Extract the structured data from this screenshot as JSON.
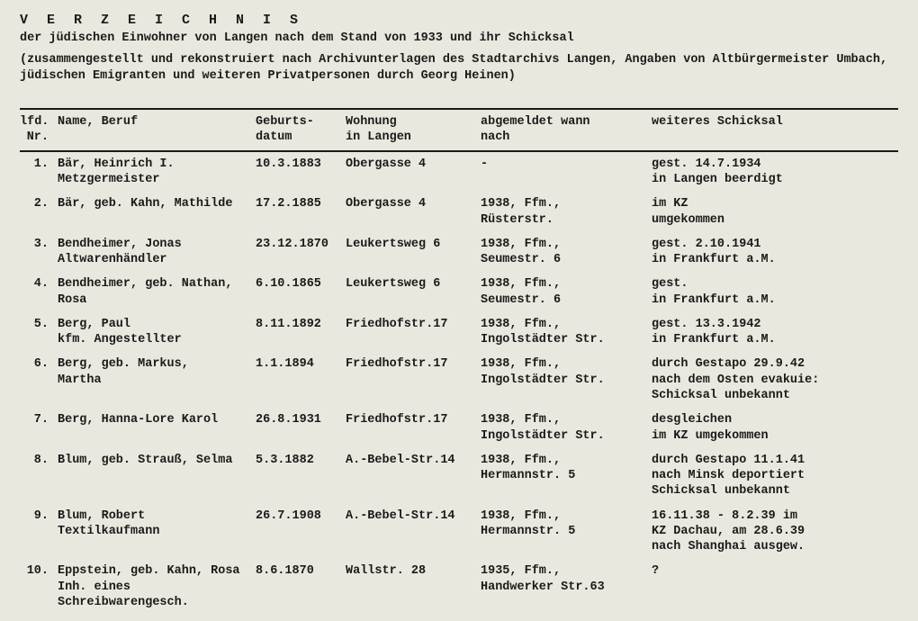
{
  "header": {
    "title": "V E R Z E I C H N I S",
    "subtitle": "der jüdischen Einwohner von Langen nach dem Stand von 1933 und ihr Schicksal",
    "note": "(zusammengestellt und rekonstruiert nach Archivunterlagen des Stadtarchivs Langen, Angaben von Altbürgermeister Umbach, jüdischen Emigranten und weiteren Privatpersonen durch Georg Heinen)"
  },
  "table": {
    "columns": {
      "nr": "lfd.\nNr.",
      "name": "Name, Beruf",
      "dob": "Geburts-\ndatum",
      "addr": "Wohnung\nin Langen",
      "dep": "abgemeldet wann\nnach",
      "fate": "weiteres Schicksal"
    },
    "rows": [
      {
        "nr": "1.",
        "name": "Bär, Heinrich I.\nMetzgermeister",
        "dob": "10.3.1883",
        "addr": "Obergasse 4",
        "dep": "-",
        "fate": "gest. 14.7.1934\nin Langen beerdigt"
      },
      {
        "nr": "2.",
        "name": "Bär, geb. Kahn, Mathilde",
        "dob": "17.2.1885",
        "addr": "Obergasse 4",
        "dep": "1938, Ffm.,\nRüsterstr.",
        "fate": "im KZ\numgekommen"
      },
      {
        "nr": "3.",
        "name": "Bendheimer, Jonas\nAltwarenhändler",
        "dob": "23.12.1870",
        "addr": "Leukertsweg 6",
        "dep": "1938, Ffm.,\nSeumestr. 6",
        "fate": "gest. 2.10.1941\nin Frankfurt a.M."
      },
      {
        "nr": "4.",
        "name": "Bendheimer, geb. Nathan,\nRosa",
        "dob": "6.10.1865",
        "addr": "Leukertsweg 6",
        "dep": "1938, Ffm.,\nSeumestr. 6",
        "fate": "gest.\nin Frankfurt a.M."
      },
      {
        "nr": "5.",
        "name": "Berg, Paul\nkfm. Angestellter",
        "dob": "8.11.1892",
        "addr": "Friedhofstr.17",
        "dep": "1938, Ffm.,\nIngolstädter Str.",
        "fate": "gest. 13.3.1942\nin Frankfurt a.M."
      },
      {
        "nr": "6.",
        "name": "Berg, geb. Markus,\nMartha",
        "dob": "1.1.1894",
        "addr": "Friedhofstr.17",
        "dep": "1938, Ffm.,\nIngolstädter Str.",
        "fate": "durch Gestapo 29.9.42\nnach dem Osten evakuie:\nSchicksal unbekannt"
      },
      {
        "nr": "7.",
        "name": "Berg, Hanna-Lore Karol",
        "dob": "26.8.1931",
        "addr": "Friedhofstr.17",
        "dep": "1938, Ffm.,\nIngolstädter Str.",
        "fate": "desgleichen\nim KZ umgekommen"
      },
      {
        "nr": "8.",
        "name": "Blum, geb. Strauß, Selma",
        "dob": "5.3.1882",
        "addr": "A.-Bebel-Str.14",
        "dep": "1938, Ffm.,\nHermannstr. 5",
        "fate": "durch Gestapo 11.1.41\nnach Minsk deportiert\nSchicksal unbekannt"
      },
      {
        "nr": "9.",
        "name": "Blum, Robert\nTextilkaufmann",
        "dob": "26.7.1908",
        "addr": "A.-Bebel-Str.14",
        "dep": "1938, Ffm.,\nHermannstr. 5",
        "fate": "16.11.38 - 8.2.39 im\nKZ Dachau, am 28.6.39\nnach Shanghai ausgew."
      },
      {
        "nr": "10.",
        "name": "Eppstein, geb. Kahn, Rosa\nInh. eines Schreibwarengesch.",
        "dob": "8.6.1870",
        "addr": "Wallstr. 28",
        "dep": "1935, Ffm.,\nHandwerker Str.63",
        "fate": "?"
      }
    ]
  }
}
